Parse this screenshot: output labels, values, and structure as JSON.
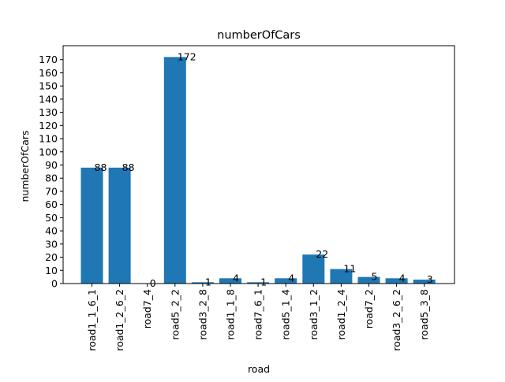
{
  "chart_data": {
    "type": "bar",
    "title": "numberOfCars",
    "xlabel": "road",
    "ylabel": "numberOfCars",
    "categories": [
      "road1_1_6_1",
      "road1_2_6_2",
      "road7_4",
      "road5_2_2",
      "road3_2_8",
      "road1_1_8",
      "road7_6_1",
      "road5_1_4",
      "road3_1_2",
      "road1_2_4",
      "road7_2",
      "road3_2_6_2",
      "road5_3_8"
    ],
    "values": [
      88,
      88,
      0,
      172,
      1,
      4,
      1,
      4,
      22,
      11,
      5,
      4,
      3
    ],
    "data_labels": [
      "88",
      "88",
      "0",
      "172",
      "1",
      "4",
      "1",
      "4",
      "22",
      "11",
      "5",
      "4",
      "3"
    ],
    "yticks": [
      0,
      10,
      20,
      30,
      40,
      50,
      60,
      70,
      80,
      90,
      100,
      110,
      120,
      130,
      140,
      150,
      160,
      170
    ],
    "ylim": [
      0,
      180.6
    ],
    "grid": false,
    "bar_color": "#1f77b4"
  }
}
